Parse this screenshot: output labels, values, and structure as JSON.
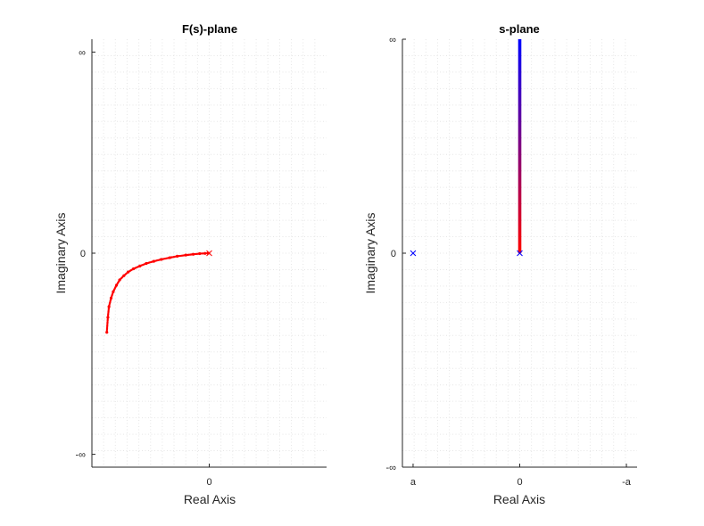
{
  "chart_data": [
    {
      "type": "line",
      "title": "F(s)-plane",
      "xlabel": "Real Axis",
      "ylabel": "Imaginary Axis",
      "xlim": [
        -1.1,
        1.1
      ],
      "ylim": [
        -1,
        1
      ],
      "grid": true,
      "minor_grid": true,
      "x_ticks": [
        {
          "value": 0,
          "label": "0"
        }
      ],
      "y_ticks": [
        {
          "value": 0.94,
          "label": "∞"
        },
        {
          "value": 0,
          "label": "0"
        },
        {
          "value": -0.94,
          "label": "-∞"
        }
      ],
      "series": [
        {
          "style": "dots",
          "color": "#ff0000",
          "x": [
            -0.96,
            -0.95,
            -0.94,
            -0.92,
            -0.9,
            -0.87,
            -0.84,
            -0.8,
            -0.76,
            -0.71,
            -0.65,
            -0.59,
            -0.52,
            -0.45,
            -0.37,
            -0.3,
            -0.22,
            -0.15,
            -0.09,
            -0.04,
            -0.01
          ],
          "y": [
            -0.37,
            -0.3,
            -0.25,
            -0.21,
            -0.18,
            -0.15,
            -0.125,
            -0.105,
            -0.088,
            -0.073,
            -0.06,
            -0.048,
            -0.038,
            -0.029,
            -0.021,
            -0.014,
            -0.009,
            -0.005,
            -0.002,
            -0.0008,
            0
          ]
        }
      ],
      "markers": [
        {
          "x": 0,
          "y": 0,
          "symbol": "x",
          "color": "#ff0000"
        }
      ]
    },
    {
      "type": "line",
      "title": "s-plane",
      "xlabel": "Real Axis",
      "ylabel": "Imaginary Axis",
      "xlim": [
        -1.1,
        1.1
      ],
      "ylim": [
        -1,
        1
      ],
      "grid": true,
      "minor_grid": true,
      "x_ticks": [
        {
          "value": -1,
          "label": "a"
        },
        {
          "value": 0,
          "label": "0"
        },
        {
          "value": 1,
          "label": "-a"
        }
      ],
      "y_ticks": [
        {
          "value": 1,
          "label": "∞"
        },
        {
          "value": 0,
          "label": "0"
        },
        {
          "value": -1,
          "label": "-∞"
        }
      ],
      "series": [
        {
          "style": "gradient-line",
          "color_start": "#ff0000",
          "color_end": "#0000ff",
          "x": [
            0,
            0
          ],
          "y": [
            0,
            1
          ]
        }
      ],
      "markers": [
        {
          "x": -1,
          "y": 0,
          "symbol": "x",
          "color": "#0000ff"
        },
        {
          "x": 0,
          "y": 0,
          "symbol": "x",
          "color": "#0000ff"
        }
      ]
    }
  ]
}
